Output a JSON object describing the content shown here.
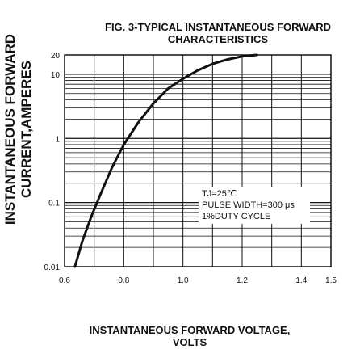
{
  "chart_data": {
    "type": "line",
    "title": "FIG. 3-TYPICAL INSTANTANEOUS FORWARD",
    "subtitle": "CHARACTERISTICS",
    "ylabel_line1": "INSTANTANEOUS FORWARD",
    "ylabel_line2": "CURRENT,AMPERES",
    "xlabel_line1": "INSTANTANEOUS FORWARD VOLTAGE,",
    "xlabel_line2": "VOLTS",
    "x_scale": "linear",
    "y_scale": "log",
    "xlim": [
      0.6,
      1.5
    ],
    "ylim": [
      0.01,
      20
    ],
    "x_ticks": [
      0.6,
      0.8,
      1.0,
      1.2,
      1.4,
      1.5
    ],
    "x_tick_labels": [
      "0.6",
      "0.8",
      "1.0",
      "1.2",
      "1.4",
      "1.5"
    ],
    "y_ticks": [
      0.01,
      0.1,
      1,
      10,
      20
    ],
    "y_tick_labels": [
      "0.01",
      "0.1",
      "1",
      "10",
      "20"
    ],
    "grid": true,
    "annotation": [
      "TJ=25℃",
      "PULSE WIDTH=300 μs",
      "1%DUTY CYCLE"
    ],
    "series": [
      {
        "x": [
          0.635,
          0.66,
          0.69,
          0.72,
          0.76,
          0.8,
          0.85,
          0.9,
          0.95,
          1.0,
          1.05,
          1.1,
          1.15,
          1.2,
          1.25
        ],
        "y": [
          0.01,
          0.025,
          0.06,
          0.13,
          0.35,
          0.8,
          1.8,
          3.5,
          6.0,
          8.5,
          11.5,
          14.5,
          17.0,
          19.0,
          20.0
        ]
      }
    ]
  }
}
